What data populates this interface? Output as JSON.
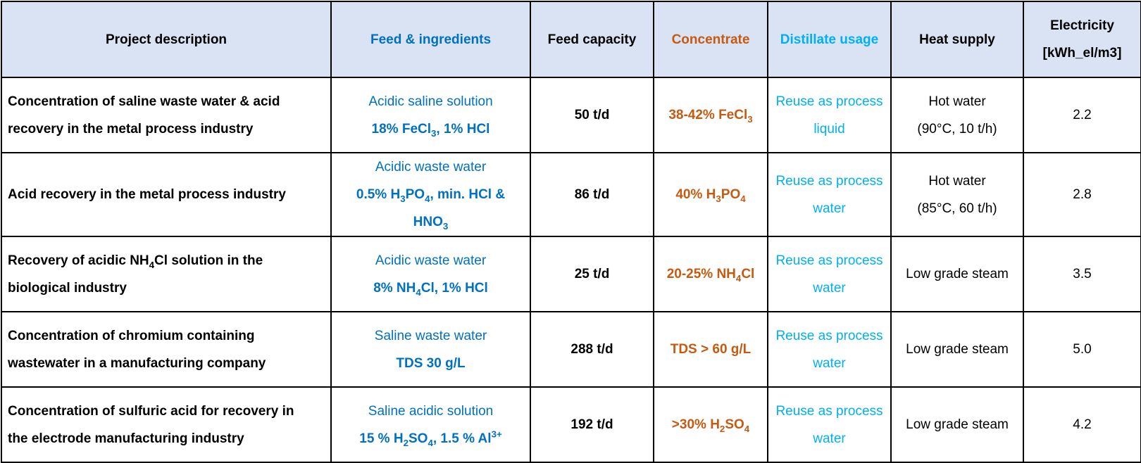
{
  "headers": {
    "project": "Project description",
    "feed": "Feed & ingredients",
    "capacity": "Feed capacity",
    "concentrate": "Concentrate",
    "distillate": "Distillate usage",
    "heat": "Heat supply",
    "electricity_line1": "Electricity",
    "electricity_line2": "[kWh_el/m3]"
  },
  "colors": {
    "header_bg": "#dae3f3",
    "feed": "#0070c0",
    "concentrate": "#c55a11",
    "distillate": "#00b0f0",
    "border": "#000000"
  },
  "rows": [
    {
      "desc_line1": "Concentration of saline waste water & acid",
      "desc_line2": "recovery in the metal process industry",
      "feed_type": "Acidic saline solution",
      "feed_detail": {
        "a": "18% FeCl",
        "a_sub": "3",
        "b": ", 1% HCl"
      },
      "capacity": "50 t/d",
      "concentrate": {
        "a": "38-42% FeCl",
        "a_sub": "3"
      },
      "distillate_line1": "Reuse as process",
      "distillate_line2": "liquid",
      "heat_line1": "Hot water",
      "heat_line2": "(90°C, 10 t/h)",
      "electricity": "2.2"
    },
    {
      "desc_line1": "Acid recovery in the metal process industry",
      "feed_type": "Acidic waste water",
      "feed_detail": {
        "a": "0.5% H",
        "a_sub": "3",
        "b": "PO",
        "b_sub": "4",
        "c": ", min. HCl & HNO",
        "c_sub": "3"
      },
      "capacity": "86 t/d",
      "concentrate": {
        "a": "40% H",
        "a_sub": "3",
        "b": "PO",
        "b_sub": "4"
      },
      "distillate_line1": "Reuse as process",
      "distillate_line2": "water",
      "heat_line1": "Hot water",
      "heat_line2": "(85°C, 60 t/h)",
      "electricity": "2.8"
    },
    {
      "desc_line1": {
        "a": "Recovery of acidic NH",
        "a_sub": "4",
        "b": "Cl solution in the"
      },
      "desc_line2": "biological industry",
      "feed_type": "Acidic waste water",
      "feed_detail": {
        "a": "8% NH",
        "a_sub": "4",
        "b": "Cl, 1% HCl"
      },
      "capacity": "25 t/d",
      "concentrate": {
        "a": "20-25% NH",
        "a_sub": "4",
        "b": "Cl"
      },
      "distillate_line1": "Reuse as process",
      "distillate_line2": "water",
      "heat_line1": "Low grade steam",
      "electricity": "3.5"
    },
    {
      "desc_line1": "Concentration of chromium containing",
      "desc_line2": "wastewater in a manufacturing company",
      "feed_type": "Saline waste water",
      "feed_detail": {
        "a": "TDS 30 g/L"
      },
      "capacity": "288 t/d",
      "concentrate": {
        "a": "TDS > 60 g/L"
      },
      "distillate_line1": "Reuse as process",
      "distillate_line2": "water",
      "heat_line1": "Low grade steam",
      "electricity": "5.0"
    },
    {
      "desc_line1": "Concentration of sulfuric acid for recovery in",
      "desc_line2": "the electrode manufacturing industry",
      "feed_type": "Saline acidic solution",
      "feed_detail": {
        "a": "15 % H",
        "a_sub": "2",
        "b": "SO",
        "b_sub": "4",
        "c": ", 1.5 % Al",
        "c_sup": "3+"
      },
      "capacity": "192 t/d",
      "concentrate": {
        "a": ">30% H",
        "a_sub": "2",
        "b": "SO",
        "b_sub": "4"
      },
      "distillate_line1": "Reuse as process",
      "distillate_line2": "water",
      "heat_line1": "Low grade steam",
      "electricity": "4.2"
    }
  ]
}
